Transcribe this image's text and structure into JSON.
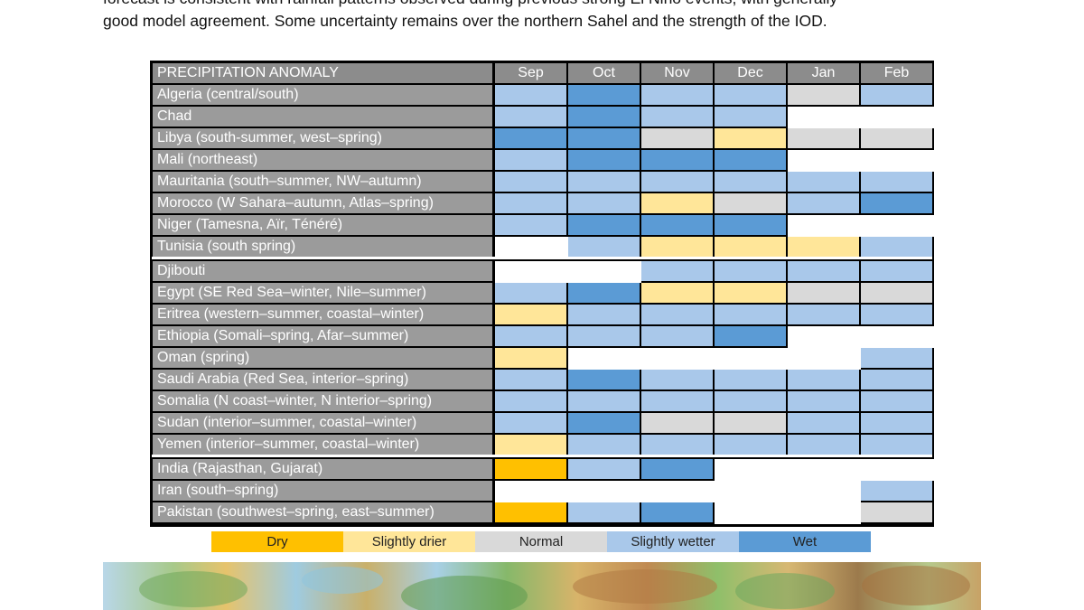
{
  "intro": {
    "line1": "forecast is consistent with rainfall patterns observed during previous strong El Niño events, with generally",
    "line2": "good model agreement. Some uncertainty remains over the northern Sahel and the strength of the IOD."
  },
  "table": {
    "corner_label": "PRECIPITATION ANOMALY",
    "months": [
      "Sep",
      "Oct",
      "Nov",
      "Dec",
      "Jan",
      "Feb"
    ],
    "rows": [
      {
        "label": "Algeria (central/south)",
        "values": [
          "slightly_wetter",
          "wet",
          "slightly_wetter",
          "slightly_wetter",
          "normal",
          "slightly_wetter"
        ]
      },
      {
        "label": "Chad",
        "values": [
          "slightly_wetter",
          "wet",
          "slightly_wetter",
          "slightly_wetter",
          "none",
          "none"
        ]
      },
      {
        "label": "Libya (south-summer, west–spring)",
        "values": [
          "wet",
          "wet",
          "normal",
          "slightly_drier",
          "normal",
          "normal"
        ]
      },
      {
        "label": "Mali (northeast)",
        "values": [
          "slightly_wetter",
          "wet",
          "wet",
          "wet",
          "none",
          "none"
        ]
      },
      {
        "label": "Mauritania (south–summer, NW–autumn)",
        "values": [
          "slightly_wetter",
          "slightly_wetter",
          "slightly_wetter",
          "slightly_wetter",
          "slightly_wetter",
          "slightly_wetter"
        ]
      },
      {
        "label": "Morocco (W Sahara–autumn, Atlas–spring)",
        "values": [
          "slightly_wetter",
          "slightly_wetter",
          "slightly_drier",
          "normal",
          "slightly_wetter",
          "wet"
        ]
      },
      {
        "label": "Niger (Tamesna, Aïr, Ténéré)",
        "values": [
          "slightly_wetter",
          "wet",
          "wet",
          "wet",
          "none",
          "none"
        ]
      },
      {
        "label": "Tunisia (south spring)",
        "values": [
          "none",
          "slightly_wetter",
          "slightly_drier",
          "slightly_drier",
          "slightly_drier",
          "slightly_wetter"
        ]
      },
      {
        "label": "Djibouti",
        "values": [
          "none",
          "none",
          "slightly_wetter",
          "slightly_wetter",
          "slightly_wetter",
          "slightly_wetter"
        ],
        "gap_before": true
      },
      {
        "label": "Egypt (SE Red Sea–winter, Nile–summer)",
        "values": [
          "slightly_wetter",
          "wet",
          "slightly_drier",
          "slightly_drier",
          "normal",
          "normal"
        ]
      },
      {
        "label": "Eritrea (western–summer, coastal–winter)",
        "values": [
          "slightly_drier",
          "slightly_wetter",
          "slightly_wetter",
          "slightly_wetter",
          "slightly_wetter",
          "slightly_wetter"
        ]
      },
      {
        "label": "Ethiopia (Somali–spring, Afar–summer)",
        "values": [
          "slightly_wetter",
          "slightly_wetter",
          "slightly_wetter",
          "wet",
          "none",
          "none"
        ]
      },
      {
        "label": "Oman (spring)",
        "values": [
          "slightly_drier",
          "none",
          "none",
          "none",
          "none",
          "slightly_wetter"
        ]
      },
      {
        "label": "Saudi Arabia (Red Sea, interior–spring)",
        "values": [
          "slightly_wetter",
          "wet",
          "slightly_wetter",
          "slightly_wetter",
          "slightly_wetter",
          "slightly_wetter"
        ]
      },
      {
        "label": "Somalia (N coast–winter, N interior–spring)",
        "values": [
          "slightly_wetter",
          "slightly_wetter",
          "slightly_wetter",
          "slightly_wetter",
          "slightly_wetter",
          "slightly_wetter"
        ]
      },
      {
        "label": "Sudan (interior–summer, coastal–winter)",
        "values": [
          "slightly_wetter",
          "wet",
          "normal",
          "normal",
          "slightly_wetter",
          "slightly_wetter"
        ]
      },
      {
        "label": "Yemen (interior–summer, coastal–winter)",
        "values": [
          "slightly_drier",
          "slightly_wetter",
          "slightly_wetter",
          "slightly_wetter",
          "slightly_wetter",
          "slightly_wetter"
        ]
      },
      {
        "label": "India (Rajasthan, Gujarat)",
        "values": [
          "dry",
          "slightly_wetter",
          "wet",
          "none",
          "none",
          "none"
        ],
        "gap_before": true
      },
      {
        "label": "Iran (south–spring)",
        "values": [
          "none",
          "none",
          "none",
          "none",
          "none",
          "slightly_wetter"
        ]
      },
      {
        "label": "Pakistan (southwest–spring, east–summer)",
        "values": [
          "dry",
          "slightly_wetter",
          "wet",
          "none",
          "none",
          "normal"
        ]
      }
    ]
  },
  "legend": [
    {
      "key": "dry",
      "label": "Dry",
      "color": "#ffc000"
    },
    {
      "key": "slightly_drier",
      "label": "Slightly drier",
      "color": "#ffe699"
    },
    {
      "key": "normal",
      "label": "Normal",
      "color": "#d9d9d9"
    },
    {
      "key": "slightly_wetter",
      "label": "Slightly wetter",
      "color": "#a9c8ea"
    },
    {
      "key": "wet",
      "label": "Wet",
      "color": "#5b9bd5"
    }
  ],
  "colors": {
    "none": "#ffffff",
    "header_bg": "#8c8c8c",
    "rowlabel_bg": "#9b9b9b"
  }
}
